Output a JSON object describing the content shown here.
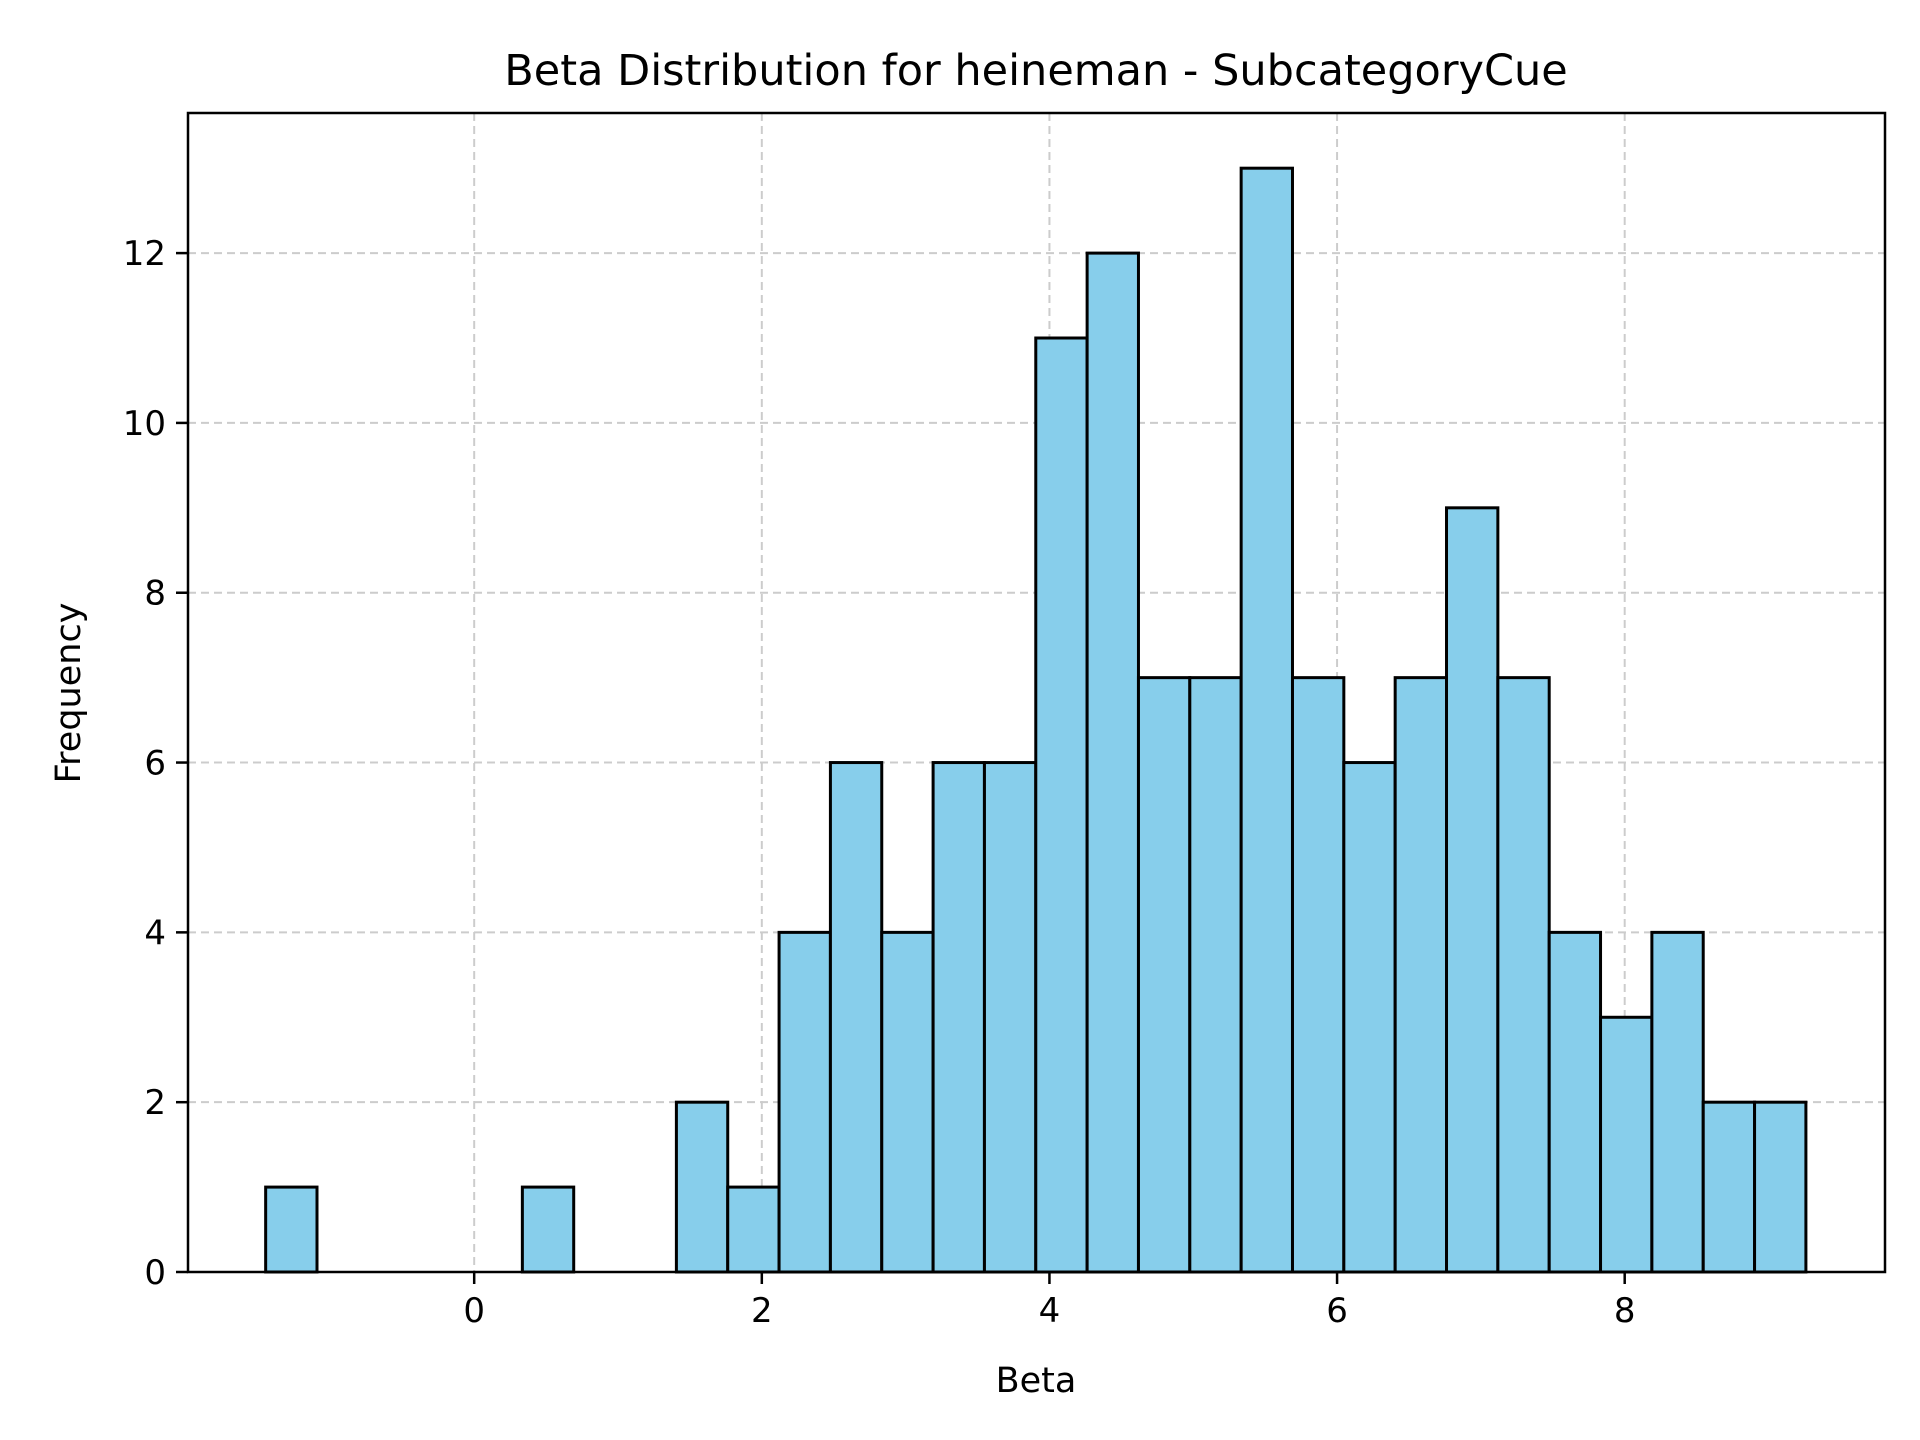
{
  "chart_data": {
    "type": "bar",
    "title": "Beta Distribution for heineman - SubcategoryCue",
    "xlabel": "Beta",
    "ylabel": "Frequency",
    "xlim": [
      -1.99,
      9.81
    ],
    "ylim": [
      0,
      13.65
    ],
    "x_ticks": [
      0,
      2,
      4,
      6,
      8
    ],
    "y_ticks": [
      0,
      2,
      4,
      6,
      8,
      10,
      12
    ],
    "grid": true,
    "bins_start": -1.45,
    "bin_width": 0.357,
    "values": [
      1,
      0,
      0,
      0,
      0,
      1,
      0,
      0,
      2,
      1,
      4,
      6,
      4,
      6,
      6,
      11,
      12,
      7,
      7,
      13,
      7,
      6,
      7,
      9,
      7,
      4,
      3,
      4,
      2,
      2
    ],
    "colors": {
      "bar": "#87ceeb",
      "edge": "#000000",
      "grid": "#cccccc"
    }
  }
}
